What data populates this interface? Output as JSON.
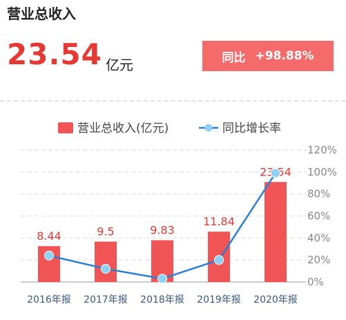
{
  "header": {
    "title": "营业总收入",
    "value": "23.54",
    "unit": "亿元",
    "yoy_label": "同比",
    "yoy_value": "+98.88%"
  },
  "colors": {
    "bar": "#f05454",
    "line": "#2a7fd6",
    "marker": "#8fd0f5",
    "accent": "#e53935",
    "badge": "#f56b6b"
  },
  "chart_data": {
    "type": "bar",
    "categories": [
      "2016年报",
      "2017年报",
      "2018年报",
      "2019年报",
      "2020年报"
    ],
    "series": [
      {
        "name": "营业总收入(亿元)",
        "type": "bar",
        "values": [
          8.44,
          9.5,
          9.83,
          11.84,
          23.54
        ],
        "labels": [
          "8.44",
          "9.5",
          "9.83",
          "11.84",
          "23.54"
        ]
      },
      {
        "name": "同比增长率",
        "type": "line",
        "axis": "right",
        "values": [
          24,
          12,
          3,
          20,
          99
        ]
      }
    ],
    "y2ticks": [
      "0%",
      "20%",
      "40%",
      "60%",
      "80%",
      "100%",
      "120%"
    ],
    "y2lim": [
      0,
      120
    ],
    "legend_position": "top",
    "grid": true
  }
}
